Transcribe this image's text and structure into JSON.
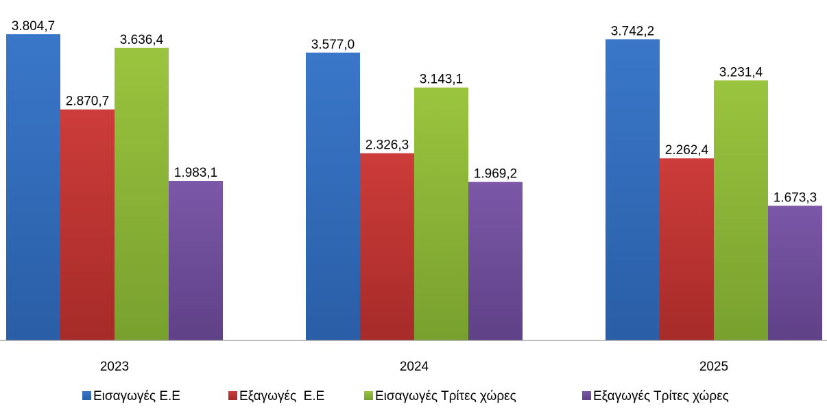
{
  "chart_data": {
    "type": "bar",
    "categories": [
      "2023",
      "2024",
      "2025"
    ],
    "series": [
      {
        "name": "Εισαγωγές Ε.Ε",
        "values": [
          3804.7,
          3577.0,
          3742.2
        ],
        "labels": [
          "3.804,7",
          "3.577,0",
          "3.742,2"
        ],
        "color": "#3a77c9",
        "color_dark": "#2a5ea6"
      },
      {
        "name": "Εξαγωγές  Ε.Ε",
        "values": [
          2870.7,
          2326.3,
          2262.4
        ],
        "labels": [
          "2.870,7",
          "2.326,3",
          "2.262,4"
        ],
        "color": "#cc3c3a",
        "color_dark": "#a62b29"
      },
      {
        "name": "Εισαγωγές Τρίτες χώρες",
        "values": [
          3636.4,
          3143.1,
          3231.4
        ],
        "labels": [
          "3.636,4",
          "3.143,1",
          "3.231,4"
        ],
        "color": "#9bc43f",
        "color_dark": "#78a02e"
      },
      {
        "name": "Εξαγωγές Τρίτες χώρες",
        "values": [
          1983.1,
          1969.2,
          1673.3
        ],
        "labels": [
          "1.983,1",
          "1.969,2",
          "1.673,3"
        ],
        "color": "#7b58a8",
        "color_dark": "#5f4187"
      }
    ],
    "ylim": [
      0,
      3804.7
    ],
    "grid": false,
    "legend": "bottom",
    "title": "",
    "xlabel": "",
    "ylabel": ""
  }
}
